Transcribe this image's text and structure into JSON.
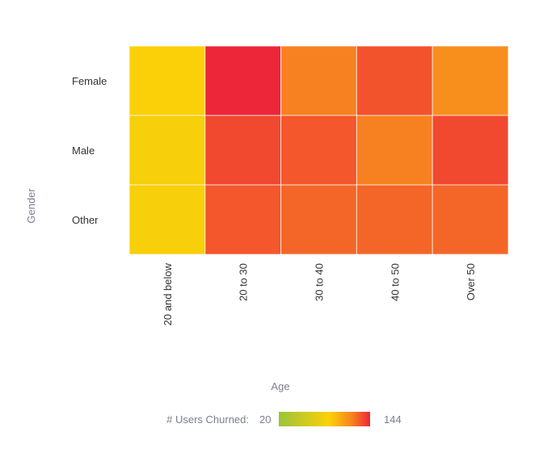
{
  "chart_data": {
    "type": "heatmap",
    "title": "",
    "xlabel": "Age",
    "ylabel": "Gender",
    "x_categories": [
      "20 and below",
      "20 to 30",
      "30 to 40",
      "40 to 50",
      "Over 50"
    ],
    "y_categories": [
      "Female",
      "Male",
      "Other"
    ],
    "values": [
      [
        88,
        144,
        120,
        132,
        115
      ],
      [
        85,
        135,
        131,
        120,
        135
      ],
      [
        85,
        131,
        127,
        127,
        127
      ]
    ],
    "color_scale": {
      "label": "# Users Churned:",
      "min": 20,
      "max": 144,
      "min_label": "20",
      "max_label": "144",
      "stops": [
        {
          "t": 0,
          "color": "#9bc43a"
        },
        {
          "t": 0.55,
          "color": "#fcd008"
        },
        {
          "t": 0.8,
          "color": "#f7841f"
        },
        {
          "t": 1,
          "color": "#ee2639"
        }
      ]
    },
    "legend_placement": "bottom",
    "grid": false
  }
}
